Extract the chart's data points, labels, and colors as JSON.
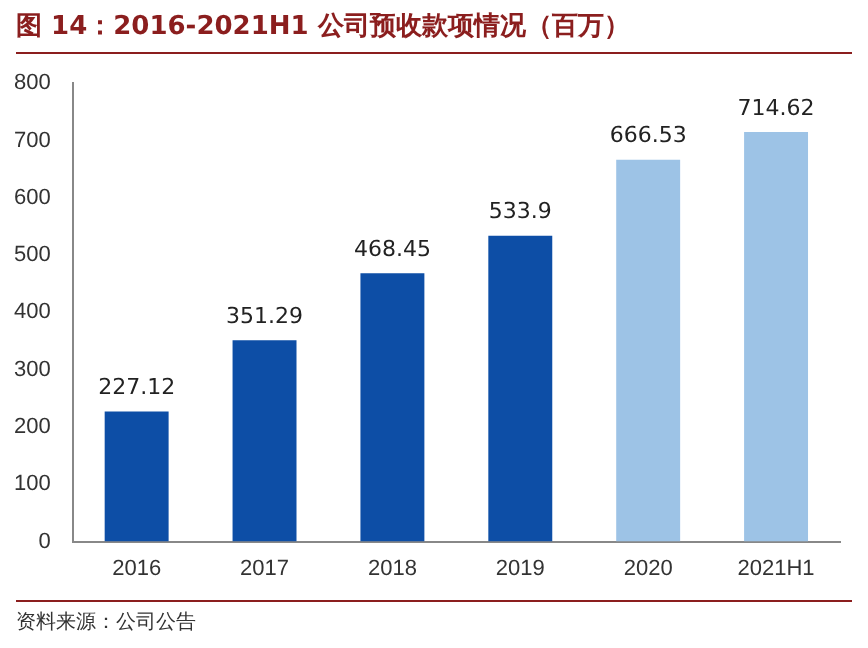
{
  "chart_data": {
    "type": "bar",
    "title": "图 14：2016-2021H1 公司预收款项情况（百万）",
    "annotations": [
      "资料来源：公司公告"
    ],
    "categories": [
      "2016",
      "2017",
      "2018",
      "2019",
      "2020",
      "2021H1"
    ],
    "values": [
      227.12,
      351.29,
      468.45,
      533.9,
      666.53,
      714.62
    ],
    "colors": [
      "#0d4ea6",
      "#0d4ea6",
      "#0d4ea6",
      "#0d4ea6",
      "#9dc3e6",
      "#9dc3e6"
    ],
    "ylim": [
      0,
      800
    ],
    "yticks": [
      0,
      100,
      200,
      300,
      400,
      500,
      600,
      700,
      800
    ],
    "grid": false,
    "legend": false,
    "data_labels": true
  }
}
